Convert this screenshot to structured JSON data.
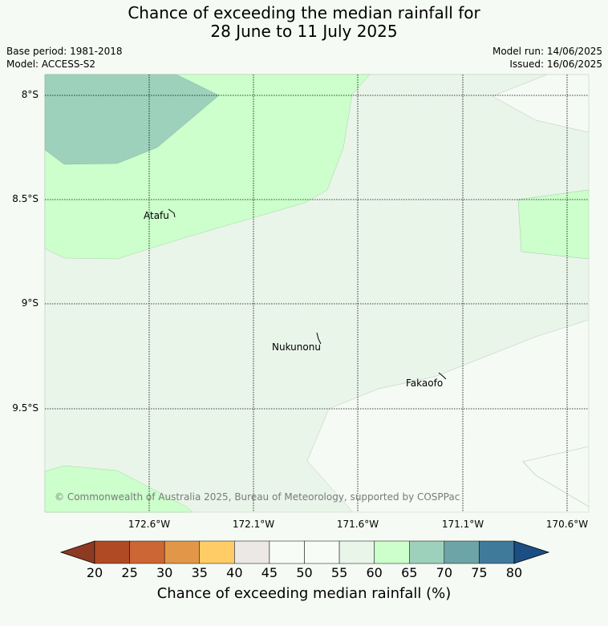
{
  "title": {
    "line1": "Chance of exceeding the median rainfall for",
    "line2": "28 June to 11 July 2025"
  },
  "meta": {
    "base_period": "Base period: 1981-2018",
    "model": "Model: ACCESS-S2",
    "model_run": "Model run: 14/06/2025",
    "issued": "Issued: 16/06/2025"
  },
  "map": {
    "lat_labels": [
      "8°S",
      "8.5°S",
      "9°S",
      "9.5°S"
    ],
    "lon_labels": [
      "172.6°W",
      "172.1°W",
      "171.6°W",
      "171.1°W",
      "170.6°W"
    ],
    "places": [
      {
        "name": "Atafu",
        "icon": "atoll-outline-icon"
      },
      {
        "name": "Nukunonu",
        "icon": "atoll-outline-icon"
      },
      {
        "name": "Fakaofo",
        "icon": "atoll-outline-icon"
      }
    ],
    "copyright": "© Commonwealth of Australia 2025, Bureau of Meteorology, supported by COSPPac",
    "region_colors": {
      "50-55": "#f5faf4",
      "55-60": "#eaf5ea",
      "60-65": "#ccffcc",
      "65-70": "#9ed1bb"
    }
  },
  "colorbar": {
    "title": "Chance of exceeding median rainfall (%)",
    "labels": [
      "20",
      "25",
      "30",
      "35",
      "40",
      "45",
      "50",
      "55",
      "60",
      "65",
      "70",
      "75",
      "80"
    ],
    "colors": [
      "#8e3a22",
      "#b04a24",
      "#cc6634",
      "#e29748",
      "#ffcc66",
      "#ebe8e6",
      "#f7fcf7",
      "#f7fcf7",
      "#eaf5ea",
      "#ccffcc",
      "#9ed1bb",
      "#6da4a7",
      "#3f7a9b",
      "#1b4f84"
    ]
  }
}
